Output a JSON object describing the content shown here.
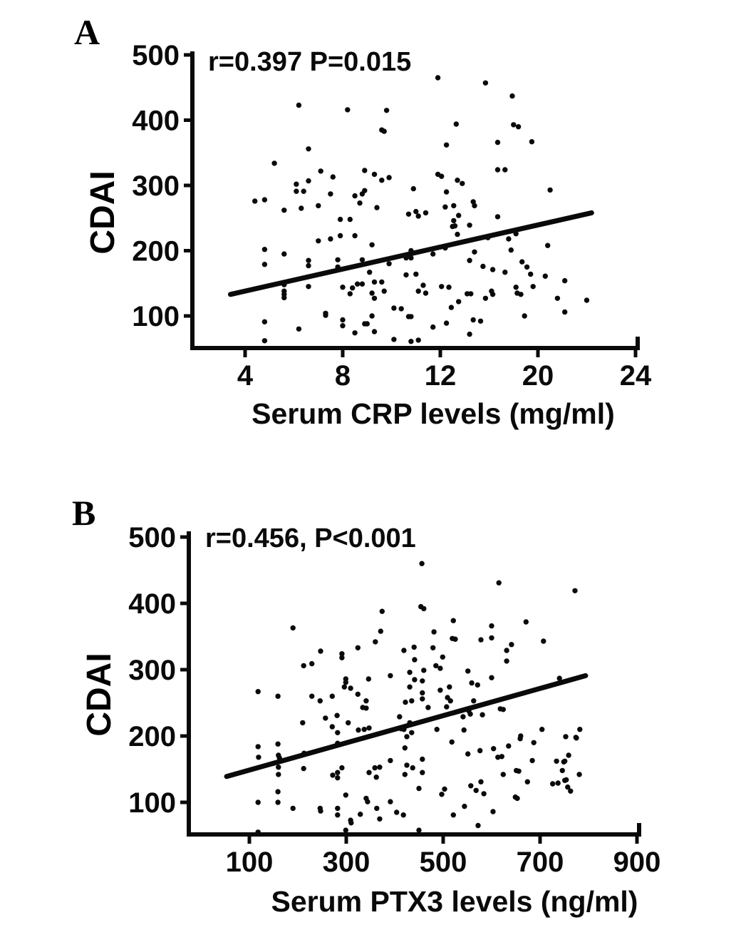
{
  "figure": {
    "background": "#ffffff",
    "ink_color": "#0a0a0a",
    "panels": [
      {
        "panel_label": "A",
        "annotation": "r=0.397 P=0.015",
        "y_axis_label": "CDAI",
        "x_axis_label": "Serum CRP levels (mg/ml)",
        "x_tick_labels": [
          "4",
          "8",
          "12",
          "20",
          "24"
        ],
        "y_tick_labels": [
          "500",
          "400",
          "300",
          "200",
          "100"
        ]
      },
      {
        "panel_label": "B",
        "annotation": "r=0.456, P<0.001",
        "y_axis_label": "CDAI",
        "x_axis_label": "Serum PTX3 levels (ng/ml)",
        "x_tick_labels": [
          "100",
          "300",
          "500",
          "700",
          "900"
        ],
        "y_tick_labels": [
          "500",
          "400",
          "300",
          "200",
          "100"
        ]
      }
    ]
  },
  "chart_data": [
    {
      "type": "scatter",
      "title": "r=0.397 P=0.015",
      "xlabel": "Serum CRP levels (mg/ml)",
      "ylabel": "CDAI",
      "legend": "none",
      "grid": false,
      "stats": {
        "r": 0.397,
        "p": "0.015"
      },
      "x_ticks": [
        4,
        8,
        12,
        20,
        24
      ],
      "y_ticks": [
        500,
        400,
        300,
        200,
        100
      ],
      "ylim": [
        50,
        500
      ],
      "trend_line": {
        "x1": 3.4,
        "y1": 133,
        "x2": 22.2,
        "y2": 258
      },
      "points": [
        [
          6.2,
          423
        ],
        [
          8.2,
          416
        ],
        [
          9.8,
          415
        ],
        [
          9.6,
          385
        ],
        [
          9.7,
          383
        ],
        [
          6.6,
          356
        ],
        [
          5.2,
          334
        ],
        [
          7.1,
          322
        ],
        [
          7.6,
          313
        ],
        [
          8.9,
          323
        ],
        [
          9.3,
          317
        ],
        [
          9.6,
          308
        ],
        [
          9.9,
          312
        ],
        [
          6.1,
          302
        ],
        [
          6.6,
          307
        ],
        [
          6.1,
          291
        ],
        [
          6.4,
          291
        ],
        [
          7.5,
          287
        ],
        [
          8.5,
          284
        ],
        [
          8.8,
          287
        ],
        [
          8.9,
          292
        ],
        [
          10.9,
          295
        ],
        [
          4.4,
          276
        ],
        [
          4.8,
          278
        ],
        [
          11.9,
          465
        ],
        [
          15.7,
          457
        ],
        [
          17.9,
          437
        ],
        [
          13.3,
          394
        ],
        [
          18.0,
          393
        ],
        [
          18.4,
          390
        ],
        [
          12.5,
          362
        ],
        [
          16.7,
          366
        ],
        [
          19.5,
          367
        ],
        [
          16.7,
          324
        ],
        [
          17.3,
          324
        ],
        [
          11.9,
          317
        ],
        [
          12.1,
          314
        ],
        [
          13.4,
          308
        ],
        [
          13.8,
          303
        ],
        [
          12.5,
          290
        ],
        [
          14.7,
          275
        ],
        [
          20.5,
          293
        ],
        [
          5.6,
          262
        ],
        [
          6.3,
          265
        ],
        [
          7.0,
          269
        ],
        [
          7.9,
          248
        ],
        [
          8.3,
          248
        ],
        [
          9.4,
          266
        ],
        [
          8.7,
          273
        ],
        [
          10.7,
          256
        ],
        [
          11.0,
          260
        ],
        [
          11.1,
          253
        ],
        [
          7.0,
          215
        ],
        [
          7.5,
          218
        ],
        [
          7.9,
          223
        ],
        [
          8.5,
          223
        ],
        [
          9.2,
          209
        ],
        [
          4.8,
          202
        ],
        [
          5.6,
          195
        ],
        [
          4.8,
          179
        ],
        [
          6.6,
          185
        ],
        [
          6.6,
          177
        ],
        [
          7.8,
          186
        ],
        [
          7.8,
          175
        ],
        [
          8.8,
          186
        ],
        [
          9.1,
          167
        ],
        [
          9.9,
          180
        ],
        [
          10.6,
          189
        ],
        [
          10.8,
          189
        ],
        [
          10.8,
          200
        ],
        [
          10.6,
          163
        ],
        [
          11.0,
          164
        ],
        [
          8.0,
          144
        ],
        [
          8.4,
          143
        ],
        [
          8.3,
          134
        ],
        [
          8.6,
          149
        ],
        [
          8.8,
          149
        ],
        [
          9.3,
          152
        ],
        [
          9.6,
          152
        ],
        [
          9.2,
          135
        ],
        [
          9.3,
          127
        ],
        [
          9.7,
          138
        ],
        [
          5.6,
          148
        ],
        [
          5.6,
          138
        ],
        [
          5.6,
          133
        ],
        [
          5.6,
          128
        ],
        [
          6.6,
          145
        ],
        [
          7.3,
          104
        ],
        [
          7.3,
          101
        ],
        [
          8.0,
          94
        ],
        [
          8.0,
          85
        ],
        [
          4.8,
          91
        ],
        [
          6.2,
          80
        ],
        [
          8.9,
          88
        ],
        [
          9.0,
          88
        ],
        [
          9.2,
          100
        ],
        [
          9.3,
          76
        ],
        [
          10.1,
          112
        ],
        [
          10.4,
          111
        ],
        [
          10.7,
          99
        ],
        [
          10.8,
          99
        ],
        [
          10.1,
          64
        ],
        [
          10.8,
          61
        ],
        [
          11.1,
          63
        ],
        [
          8.5,
          74
        ],
        [
          4.8,
          62
        ],
        [
          11.1,
          138
        ],
        [
          11.4,
          258
        ],
        [
          12.4,
          267
        ],
        [
          13.1,
          269
        ],
        [
          13.5,
          254
        ],
        [
          13.1,
          246
        ],
        [
          13.2,
          238
        ],
        [
          13.0,
          237
        ],
        [
          14.4,
          239
        ],
        [
          14.8,
          269
        ],
        [
          13.4,
          225
        ],
        [
          16.7,
          252
        ],
        [
          17.6,
          218
        ],
        [
          15.9,
          220
        ],
        [
          18.2,
          226
        ],
        [
          12.4,
          204
        ],
        [
          11.7,
          195
        ],
        [
          14.8,
          198
        ],
        [
          14.4,
          185
        ],
        [
          17.8,
          201
        ],
        [
          20.4,
          208
        ],
        [
          18.7,
          183
        ],
        [
          19.1,
          175
        ],
        [
          15.5,
          176
        ],
        [
          16.3,
          171
        ],
        [
          17.3,
          167
        ],
        [
          19.4,
          164
        ],
        [
          20.3,
          161
        ],
        [
          11.3,
          147
        ],
        [
          11.4,
          135
        ],
        [
          12.1,
          145
        ],
        [
          12.7,
          144
        ],
        [
          14.2,
          134
        ],
        [
          14.5,
          134
        ],
        [
          13.5,
          122
        ],
        [
          15.7,
          127
        ],
        [
          16.2,
          138
        ],
        [
          16.3,
          133
        ],
        [
          18.2,
          144
        ],
        [
          18.3,
          135
        ],
        [
          18.6,
          133
        ],
        [
          19.6,
          145
        ],
        [
          21.1,
          154
        ],
        [
          20.8,
          127
        ],
        [
          22.0,
          124
        ],
        [
          21.1,
          106
        ],
        [
          12.9,
          113
        ],
        [
          12.5,
          89
        ],
        [
          11.7,
          83
        ],
        [
          14.7,
          94
        ],
        [
          15.3,
          92
        ],
        [
          18.9,
          100
        ],
        [
          14.4,
          72
        ]
      ]
    },
    {
      "type": "scatter",
      "title": "r=0.456, P<0.001",
      "xlabel": "Serum PTX3 levels (ng/ml)",
      "ylabel": "CDAI",
      "legend": "none",
      "grid": false,
      "stats": {
        "r": 0.456,
        "p": "<0.001"
      },
      "x_ticks": [
        100,
        300,
        500,
        700,
        900
      ],
      "y_ticks": [
        500,
        400,
        300,
        200,
        100
      ],
      "ylim": [
        50,
        500
      ],
      "trend_line": {
        "x1": 53,
        "y1": 139,
        "x2": 794,
        "y2": 291
      },
      "points": [
        [
          118,
          267
        ],
        [
          159,
          260
        ],
        [
          118,
          184
        ],
        [
          119,
          168
        ],
        [
          159,
          188
        ],
        [
          162,
          167
        ],
        [
          159,
          116
        ],
        [
          118,
          100
        ],
        [
          159,
          100
        ],
        [
          118,
          55
        ],
        [
          456,
          460
        ],
        [
          374,
          388
        ],
        [
          454,
          395
        ],
        [
          190,
          363
        ],
        [
          371,
          358
        ],
        [
          360,
          342
        ],
        [
          324,
          333
        ],
        [
          247,
          328
        ],
        [
          291,
          324
        ],
        [
          291,
          318
        ],
        [
          419,
          329
        ],
        [
          440,
          334
        ],
        [
          212,
          306
        ],
        [
          229,
          309
        ],
        [
          441,
          315
        ],
        [
          299,
          286
        ],
        [
          299,
          281
        ],
        [
          346,
          286
        ],
        [
          391,
          291
        ],
        [
          431,
          296
        ],
        [
          441,
          285
        ],
        [
          457,
          283
        ],
        [
          615,
          431
        ],
        [
          772,
          419
        ],
        [
          521,
          374
        ],
        [
          460,
          392
        ],
        [
          481,
          357
        ],
        [
          600,
          366
        ],
        [
          671,
          372
        ],
        [
          519,
          347
        ],
        [
          525,
          346
        ],
        [
          578,
          345
        ],
        [
          600,
          348
        ],
        [
          479,
          333
        ],
        [
          707,
          343
        ],
        [
          499,
          319
        ],
        [
          641,
          338
        ],
        [
          631,
          329
        ],
        [
          631,
          313
        ],
        [
          485,
          306
        ],
        [
          494,
          302
        ],
        [
          551,
          298
        ],
        [
          600,
          288
        ],
        [
          740,
          287
        ],
        [
          559,
          280
        ],
        [
          571,
          277
        ],
        [
          460,
          299
        ],
        [
          229,
          260
        ],
        [
          246,
          253
        ],
        [
          271,
          260
        ],
        [
          296,
          274
        ],
        [
          309,
          272
        ],
        [
          324,
          263
        ],
        [
          341,
          253
        ],
        [
          334,
          243
        ],
        [
          341,
          242
        ],
        [
          257,
          227
        ],
        [
          281,
          231
        ],
        [
          304,
          220
        ],
        [
          210,
          220
        ],
        [
          271,
          214
        ],
        [
          282,
          205
        ],
        [
          282,
          189
        ],
        [
          325,
          209
        ],
        [
          337,
          210
        ],
        [
          347,
          212
        ],
        [
          160,
          171
        ],
        [
          160,
          153
        ],
        [
          160,
          142
        ],
        [
          213,
          174
        ],
        [
          212,
          151
        ],
        [
          272,
          141
        ],
        [
          282,
          145
        ],
        [
          282,
          137
        ],
        [
          291,
          152
        ],
        [
          299,
          111
        ],
        [
          190,
          91
        ],
        [
          246,
          91
        ],
        [
          247,
          87
        ],
        [
          282,
          91
        ],
        [
          282,
          81
        ],
        [
          309,
          73
        ],
        [
          310,
          69
        ],
        [
          329,
          82
        ],
        [
          341,
          106
        ],
        [
          344,
          101
        ],
        [
          299,
          58
        ],
        [
          431,
          274
        ],
        [
          457,
          265
        ],
        [
          422,
          251
        ],
        [
          435,
          253
        ],
        [
          457,
          256
        ],
        [
          410,
          229
        ],
        [
          431,
          220
        ],
        [
          413,
          211
        ],
        [
          419,
          210
        ],
        [
          435,
          205
        ],
        [
          425,
          199
        ],
        [
          421,
          182
        ],
        [
          391,
          163
        ],
        [
          425,
          156
        ],
        [
          437,
          152
        ],
        [
          457,
          165
        ],
        [
          457,
          145
        ],
        [
          421,
          142
        ],
        [
          450,
          121
        ],
        [
          391,
          101
        ],
        [
          404,
          85
        ],
        [
          418,
          81
        ],
        [
          450,
          58
        ],
        [
          369,
          153
        ],
        [
          359,
          152
        ],
        [
          347,
          145
        ],
        [
          362,
          138
        ],
        [
          369,
          75
        ],
        [
          363,
          91
        ],
        [
          494,
          269
        ],
        [
          513,
          274
        ],
        [
          509,
          258
        ],
        [
          515,
          253
        ],
        [
          507,
          244
        ],
        [
          469,
          243
        ],
        [
          563,
          253
        ],
        [
          553,
          238
        ],
        [
          556,
          233
        ],
        [
          581,
          232
        ],
        [
          618,
          241
        ],
        [
          624,
          240
        ],
        [
          541,
          229
        ],
        [
          487,
          210
        ],
        [
          543,
          209
        ],
        [
          518,
          191
        ],
        [
          551,
          173
        ],
        [
          576,
          178
        ],
        [
          604,
          181
        ],
        [
          613,
          168
        ],
        [
          621,
          169
        ],
        [
          635,
          185
        ],
        [
          659,
          196
        ],
        [
          660,
          200
        ],
        [
          687,
          190
        ],
        [
          704,
          210
        ],
        [
          684,
          163
        ],
        [
          651,
          148
        ],
        [
          656,
          147
        ],
        [
          624,
          142
        ],
        [
          674,
          131
        ],
        [
          734,
          162
        ],
        [
          749,
          161
        ],
        [
          759,
          171
        ],
        [
          746,
          148
        ],
        [
          754,
          134
        ],
        [
          757,
          123
        ],
        [
          763,
          117
        ],
        [
          726,
          128
        ],
        [
          737,
          129
        ],
        [
          774,
          198
        ],
        [
          782,
          210
        ],
        [
          781,
          142
        ],
        [
          503,
          120
        ],
        [
          497,
          112
        ],
        [
          557,
          125
        ],
        [
          568,
          118
        ],
        [
          578,
          131
        ],
        [
          584,
          113
        ],
        [
          544,
          94
        ],
        [
          521,
          81
        ],
        [
          603,
          86
        ],
        [
          572,
          65
        ],
        [
          649,
          108
        ],
        [
          653,
          106
        ],
        [
          775,
          197
        ],
        [
          753,
          199
        ],
        [
          751,
          162
        ],
        [
          751,
          133
        ]
      ]
    }
  ]
}
